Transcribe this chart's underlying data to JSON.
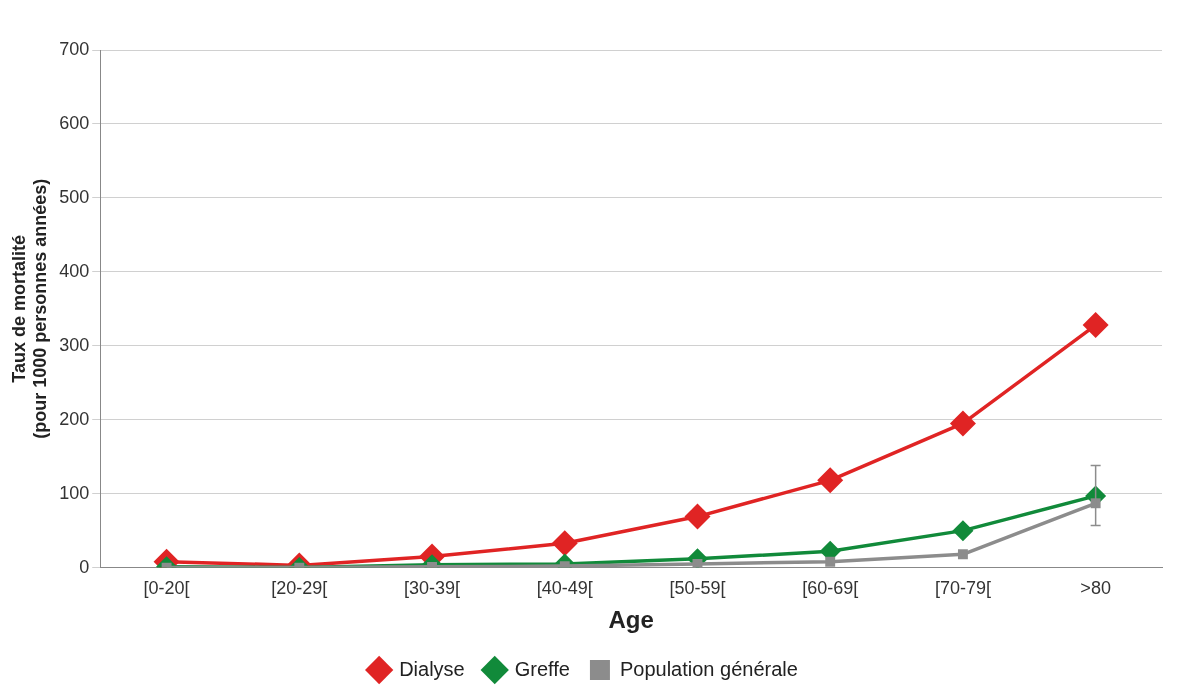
{
  "chart_data": {
    "type": "line",
    "xlabel": "Age",
    "ylabel": "Taux de mortalité\n(pour 1000 personnes années)",
    "categories": [
      "[0-20[",
      "[20-29[",
      "[30-39[",
      "[40-49[",
      "[50-59[",
      "[60-69[",
      "[70-79[",
      ">80"
    ],
    "series": [
      {
        "name": "Dialyse",
        "color": "#e02424",
        "marker": "diamond",
        "values": [
          8,
          3,
          15,
          33,
          69,
          118,
          195,
          328
        ]
      },
      {
        "name": "Greffe",
        "color": "#118a3a",
        "marker": "diamond",
        "values": [
          1,
          0,
          4,
          5,
          12,
          22,
          50,
          97
        ]
      },
      {
        "name": "Population générale",
        "color": "#8c8c8c",
        "marker": "square",
        "values": [
          0,
          0,
          1,
          2,
          5,
          8,
          18,
          87
        ],
        "errors": [
          null,
          null,
          null,
          null,
          null,
          null,
          null,
          [
            57,
            138
          ]
        ]
      }
    ],
    "ylim": [
      0,
      700
    ],
    "yticks": [
      0,
      100,
      200,
      300,
      400,
      500,
      600,
      700
    ],
    "grid": "y",
    "legend": "bottom",
    "line_style": "solid"
  }
}
